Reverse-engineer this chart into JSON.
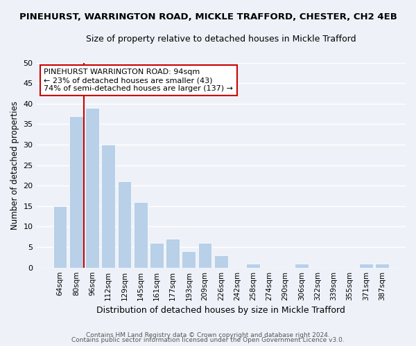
{
  "title": "PINEHURST, WARRINGTON ROAD, MICKLE TRAFFORD, CHESTER, CH2 4EB",
  "subtitle": "Size of property relative to detached houses in Mickle Trafford",
  "xlabel": "Distribution of detached houses by size in Mickle Trafford",
  "ylabel": "Number of detached properties",
  "bar_labels": [
    "64sqm",
    "80sqm",
    "96sqm",
    "112sqm",
    "129sqm",
    "145sqm",
    "161sqm",
    "177sqm",
    "193sqm",
    "209sqm",
    "226sqm",
    "242sqm",
    "258sqm",
    "274sqm",
    "290sqm",
    "306sqm",
    "322sqm",
    "339sqm",
    "355sqm",
    "371sqm",
    "387sqm"
  ],
  "bar_values": [
    15,
    37,
    39,
    30,
    21,
    16,
    6,
    7,
    4,
    6,
    3,
    0,
    1,
    0,
    0,
    1,
    0,
    0,
    0,
    1,
    1
  ],
  "bar_color": "#b8d0e8",
  "bar_edge_color": "#ffffff",
  "vline_color": "#cc0000",
  "annotation_title": "PINEHURST WARRINGTON ROAD: 94sqm",
  "annotation_line1": "← 23% of detached houses are smaller (43)",
  "annotation_line2": "74% of semi-detached houses are larger (137) →",
  "annotation_box_edge": "#cc0000",
  "ylim": [
    0,
    50
  ],
  "yticks": [
    0,
    5,
    10,
    15,
    20,
    25,
    30,
    35,
    40,
    45,
    50
  ],
  "footer1": "Contains HM Land Registry data © Crown copyright and database right 2024.",
  "footer2": "Contains public sector information licensed under the Open Government Licence v3.0.",
  "bg_color": "#eef2f8",
  "plot_bg_color": "#eef2f8",
  "grid_color": "#ffffff"
}
